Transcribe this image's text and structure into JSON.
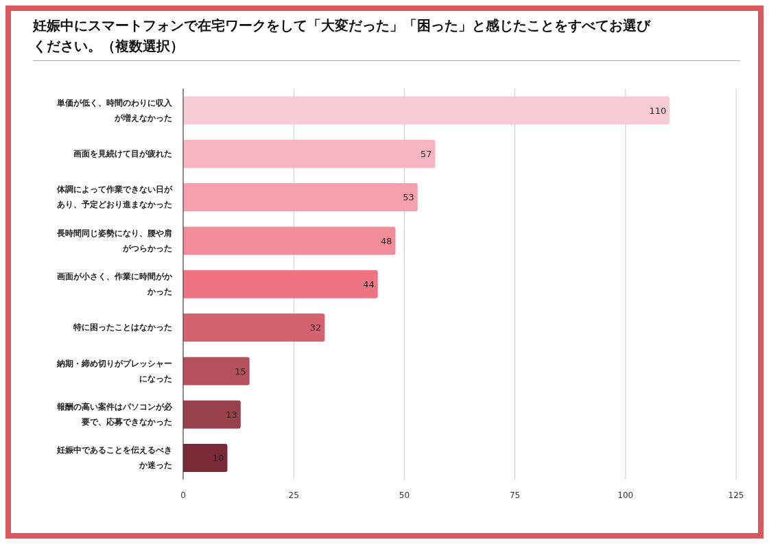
{
  "chart_data": {
    "type": "bar",
    "orientation": "horizontal",
    "title": "妊娠中にスマートフォンで在宅ワークをして「大変だった」「困った」と感じたことをすべてお選びください。（複数選択）",
    "categories": [
      "単価が低く、時間のわりに収入が増えなかった",
      "画面を見続けて目が疲れた",
      "体調によって作業できない日があり、予定どおり進まなかった",
      "長時間同じ姿勢になり、腰や肩がつらかった",
      "画面が小さく、作業に時間がかかった",
      "特に困ったことはなかった",
      "納期・締め切りがプレッシャーになった",
      "報酬の高い案件はパソコンが必要で、応募できなかった",
      "妊娠中であることを伝えるべきか迷った"
    ],
    "values": [
      110,
      57,
      53,
      48,
      44,
      32,
      15,
      13,
      10
    ],
    "colors": [
      "#f9ccd5",
      "#f7b5c1",
      "#f5a0ae",
      "#f38c9b",
      "#f07384",
      "#d4626f",
      "#b5505d",
      "#98404b",
      "#7a2a36"
    ],
    "xlim": [
      0,
      125
    ],
    "xticks": [
      0,
      25,
      50,
      75,
      100,
      125
    ],
    "grid": "x",
    "data_labels": true
  }
}
